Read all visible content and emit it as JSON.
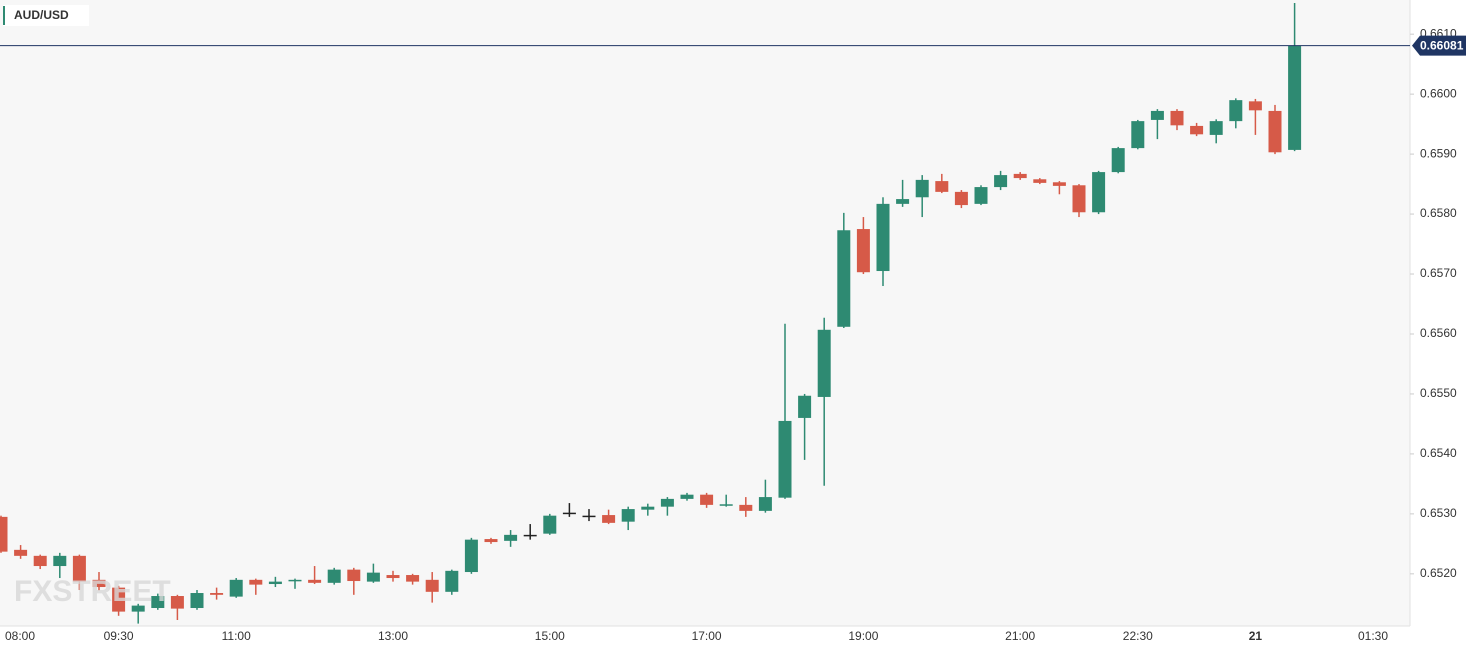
{
  "chart_data": {
    "type": "candlestick",
    "title": "AUD/USD",
    "watermark": "FXSTREET",
    "categories": [
      "08:00",
      null,
      null,
      null,
      null,
      null,
      "09:30",
      null,
      null,
      null,
      null,
      null,
      "11:00",
      null,
      null,
      null,
      null,
      null,
      null,
      null,
      "13:00",
      null,
      null,
      null,
      null,
      null,
      null,
      null,
      "15:00",
      null,
      null,
      null,
      null,
      null,
      null,
      null,
      "17:00",
      null,
      null,
      null,
      null,
      null,
      null,
      null,
      "19:00",
      null,
      null,
      null,
      null,
      null,
      null,
      null,
      "21:00",
      null,
      null,
      null,
      null,
      null,
      "22:30",
      null,
      null,
      null,
      null,
      null,
      "21",
      null,
      null,
      null,
      null,
      null,
      "01:30"
    ],
    "open": [
      0.65295,
      0.6524,
      0.6523,
      0.65213,
      0.6523,
      0.6519,
      0.65177,
      0.65137,
      0.65143,
      0.65163,
      0.65143,
      0.65168,
      0.65162,
      0.6519,
      0.65183,
      0.65188,
      0.6519,
      0.65185,
      0.65207,
      0.65187,
      0.65198,
      0.65198,
      0.6519,
      0.6517,
      0.65203,
      0.65258,
      0.65255,
      0.65265,
      0.65267,
      0.65302,
      0.65297,
      0.65298,
      0.65287,
      0.65307,
      0.65312,
      0.65325,
      0.65332,
      0.65314,
      0.65315,
      0.65305,
      0.65327,
      0.6546,
      0.65495,
      0.65612,
      0.65775,
      0.65705,
      0.65817,
      0.65828,
      0.65855,
      0.65837,
      0.65817,
      0.65845,
      0.65867,
      0.65858,
      0.65853,
      0.65848,
      0.65803,
      0.6587,
      0.6591,
      0.65957,
      0.65972,
      0.65947,
      0.65932,
      0.65955,
      0.65988,
      0.65972,
      0.65907,
      null,
      null,
      null,
      null
    ],
    "high": [
      0.65297,
      0.65248,
      0.65232,
      0.65235,
      0.65232,
      0.65203,
      0.6518,
      0.6515,
      0.65167,
      0.65165,
      0.65173,
      0.65177,
      0.65193,
      0.65192,
      0.65195,
      0.65192,
      0.65213,
      0.6521,
      0.6521,
      0.65217,
      0.65205,
      0.652,
      0.65203,
      0.65207,
      0.6526,
      0.6526,
      0.65273,
      0.65283,
      0.653,
      0.65318,
      0.65308,
      0.65307,
      0.65312,
      0.65317,
      0.65328,
      0.65335,
      0.65335,
      0.65332,
      0.65328,
      0.65357,
      0.65617,
      0.655,
      0.65627,
      0.65802,
      0.65795,
      0.65828,
      0.65857,
      0.65865,
      0.65867,
      0.6584,
      0.65848,
      0.65872,
      0.6587,
      0.6586,
      0.65855,
      0.6585,
      0.65872,
      0.65912,
      0.65957,
      0.65975,
      0.65975,
      0.65952,
      0.65958,
      0.65993,
      0.65992,
      0.65982,
      0.66152,
      null,
      null,
      null,
      null
    ],
    "low": [
      0.65235,
      0.65225,
      0.65208,
      0.65193,
      0.65173,
      0.65172,
      0.6513,
      0.65117,
      0.6514,
      0.65123,
      0.6514,
      0.65157,
      0.6516,
      0.65165,
      0.65178,
      0.65175,
      0.65183,
      0.65182,
      0.65165,
      0.65185,
      0.65187,
      0.65182,
      0.65152,
      0.65165,
      0.652,
      0.6525,
      0.65245,
      0.65257,
      0.65265,
      0.65295,
      0.65288,
      0.65283,
      0.65273,
      0.65297,
      0.65297,
      0.65322,
      0.6531,
      0.65312,
      0.65295,
      0.65302,
      0.65325,
      0.6539,
      0.65347,
      0.6561,
      0.657,
      0.6568,
      0.65812,
      0.65795,
      0.65835,
      0.6581,
      0.65815,
      0.6584,
      0.65857,
      0.6585,
      0.65833,
      0.65795,
      0.658,
      0.65868,
      0.65908,
      0.65925,
      0.6594,
      0.6593,
      0.65918,
      0.65943,
      0.65932,
      0.659,
      0.65905,
      null,
      null,
      null,
      null
    ],
    "close": [
      0.65237,
      0.6523,
      0.65213,
      0.6523,
      0.65187,
      0.65178,
      0.65137,
      0.65147,
      0.65163,
      0.65142,
      0.65168,
      0.65165,
      0.6519,
      0.65182,
      0.65187,
      0.6519,
      0.65185,
      0.65207,
      0.65188,
      0.65202,
      0.65193,
      0.65187,
      0.6517,
      0.65205,
      0.65257,
      0.65253,
      0.65265,
      0.65265,
      0.65297,
      0.65302,
      0.65297,
      0.65285,
      0.65308,
      0.65312,
      0.65325,
      0.65332,
      0.65315,
      0.65316,
      0.65305,
      0.65328,
      0.65455,
      0.65497,
      0.65607,
      0.65773,
      0.65703,
      0.65817,
      0.65825,
      0.65857,
      0.65837,
      0.65815,
      0.65845,
      0.65865,
      0.6586,
      0.65852,
      0.65847,
      0.65803,
      0.6587,
      0.6591,
      0.65955,
      0.65972,
      0.65948,
      0.65933,
      0.65955,
      0.6599,
      0.65973,
      0.65903,
      0.66081,
      null,
      null,
      null,
      null
    ],
    "up_color": "#2e8a72",
    "down_color": "#d65a48",
    "flat_color": "#222222",
    "last_price": 0.66081,
    "last_price_color": "#1f3563",
    "ylim": [
      0.65113,
      0.66157
    ],
    "yticks": [
      {
        "value": 0.652,
        "label": "0.6520"
      },
      {
        "value": 0.653,
        "label": "0.6530"
      },
      {
        "value": 0.654,
        "label": "0.6540"
      },
      {
        "value": 0.655,
        "label": "0.6550"
      },
      {
        "value": 0.656,
        "label": "0.6560"
      },
      {
        "value": 0.657,
        "label": "0.6570"
      },
      {
        "value": 0.658,
        "label": "0.6580"
      },
      {
        "value": 0.659,
        "label": "0.6590"
      },
      {
        "value": 0.66,
        "label": "0.6600"
      },
      {
        "value": 0.661,
        "label": "0.6610"
      }
    ]
  }
}
